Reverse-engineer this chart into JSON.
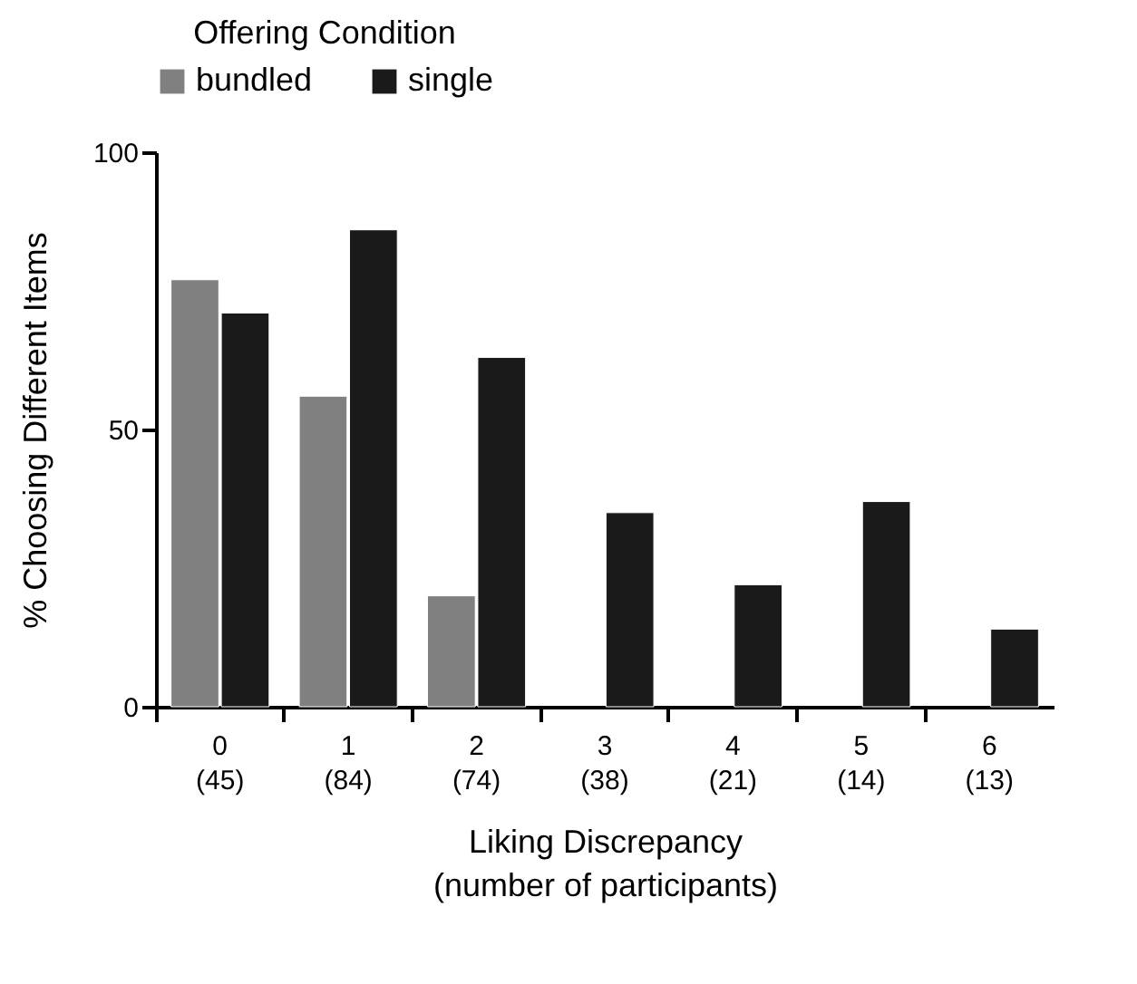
{
  "chart_data": {
    "type": "bar",
    "xlabel": "Liking Discrepancy\n(number of participants)",
    "ylabel": "% Choosing Different Items",
    "legend_title": "Offering Condition",
    "categories": [
      "0\n(45)",
      "1\n(84)",
      "2\n(74)",
      "3\n(38)",
      "4\n(21)",
      "5\n(14)",
      "6\n(13)"
    ],
    "series": [
      {
        "name": "bundled",
        "color": "#808080",
        "values": [
          77,
          56,
          20,
          null,
          null,
          null,
          null
        ]
      },
      {
        "name": "single",
        "color": "#1a1a1a",
        "values": [
          71,
          86,
          63,
          35,
          22,
          37,
          14
        ]
      }
    ],
    "ylim": [
      0,
      100
    ],
    "yticks": [
      0,
      50,
      100
    ],
    "grid": false,
    "legend": "top"
  }
}
